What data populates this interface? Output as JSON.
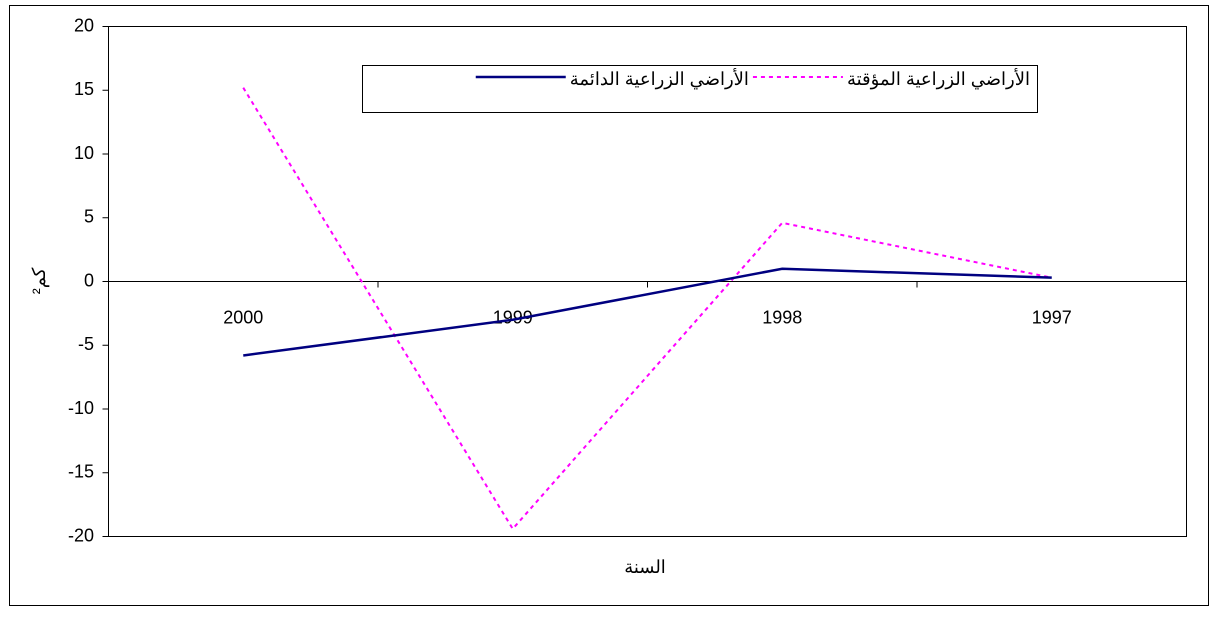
{
  "chart_data": {
    "type": "line",
    "xlabel": "السنة",
    "ylabel": "كم²",
    "categories": [
      "2000",
      "1999",
      "1998",
      "1997"
    ],
    "series": [
      {
        "name": "الأراضي الزراعية المؤقتة",
        "color": "#ff00ff",
        "dash": true,
        "values": [
          15.2,
          -19.4,
          4.6,
          0.3
        ]
      },
      {
        "name": "الأراضي الزراعية الدائمة",
        "color": "#000080",
        "dash": false,
        "values": [
          -5.8,
          -3,
          1.0,
          0.3
        ]
      }
    ],
    "ylim": [
      -20,
      20
    ],
    "yticks": [
      -20,
      -15,
      -10,
      -5,
      0,
      5,
      10,
      15,
      20
    ],
    "grid": false
  }
}
